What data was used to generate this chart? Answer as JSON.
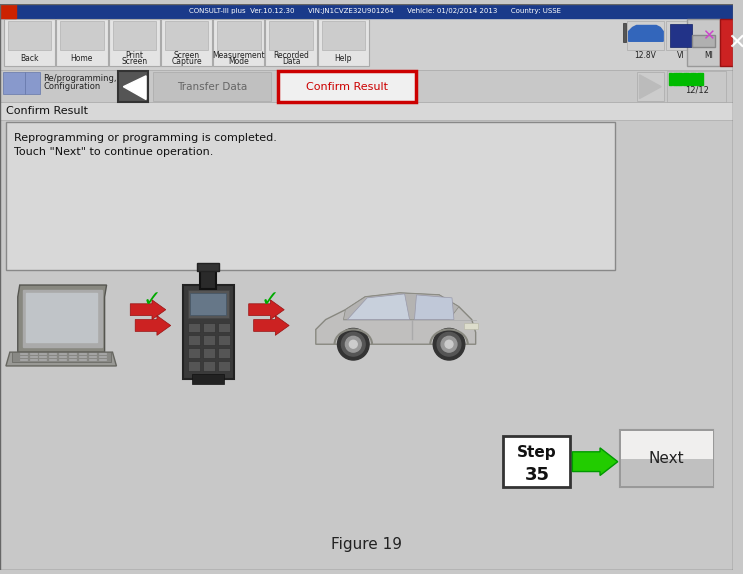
{
  "title": "Figure 19",
  "bg_color": "#c8c8c8",
  "header_bar_color": "#1a3a8a",
  "toolbar_bg": "#d0d0d0",
  "breadcrumb_bg": "#c8c8c8",
  "section_bg": "#e0e0e0",
  "message_bg": "#d8d8d8",
  "message_line1": "Reprogramming or programming is completed.",
  "message_line2": "Touch \"Next\" to continue operation.",
  "confirm_result_border_color": "#cc0000",
  "confirm_result_text_color": "#cc0000",
  "arrow_color": "#22cc00",
  "step_text1": "Step",
  "step_text2": "35",
  "next_label": "Next",
  "title_text": "Figure 19",
  "section_title": "Confirm Result",
  "breadcrumb_left": "Re/programming,\nConfiguration",
  "step_counter": "12/12"
}
